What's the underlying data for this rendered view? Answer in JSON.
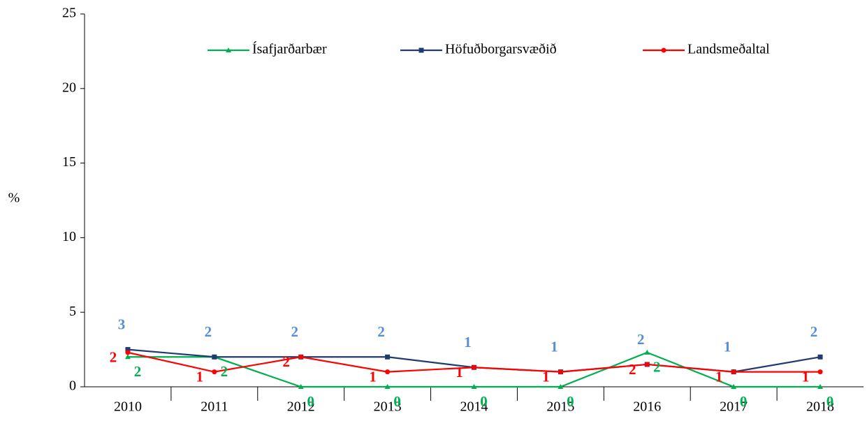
{
  "chart_data": {
    "type": "line",
    "categories": [
      "2010",
      "2011",
      "2012",
      "2013",
      "2014",
      "2015",
      "2016",
      "2017",
      "2018"
    ],
    "y_label": "%",
    "ylim": [
      0,
      25
    ],
    "yticks": [
      0,
      5,
      10,
      15,
      20,
      25
    ],
    "series": [
      {
        "name": "Ísafjarðarbær",
        "color": "#00b050",
        "label_color": "#00b050",
        "marker": "triangle",
        "values": [
          2.0,
          2.0,
          0,
          0,
          0,
          0,
          2.3,
          0,
          0
        ],
        "value_labels": [
          "2",
          "2",
          "0",
          "0",
          "0",
          "0",
          "2",
          "0",
          "0"
        ]
      },
      {
        "name": "Höfuðborgarsvæðið",
        "color": "#1f3b6f",
        "label_color": "#558ed5",
        "marker": "square",
        "values": [
          2.5,
          2.0,
          2.0,
          2.0,
          1.3,
          1.0,
          1.5,
          1.0,
          2.0
        ],
        "value_labels": [
          "3",
          "2",
          "2",
          "2",
          "1",
          "1",
          "2",
          "1",
          "2"
        ]
      },
      {
        "name": "Landsmeðaltal",
        "color": "#ff0000",
        "label_color": "#ff0000",
        "marker": "circle",
        "values": [
          2.3,
          1.0,
          2.0,
          1.0,
          1.3,
          1.0,
          1.5,
          1.0,
          1.0
        ],
        "value_labels": [
          "2",
          "1",
          "2",
          "1",
          "1",
          "1",
          "2",
          "1",
          "1"
        ]
      }
    ]
  }
}
